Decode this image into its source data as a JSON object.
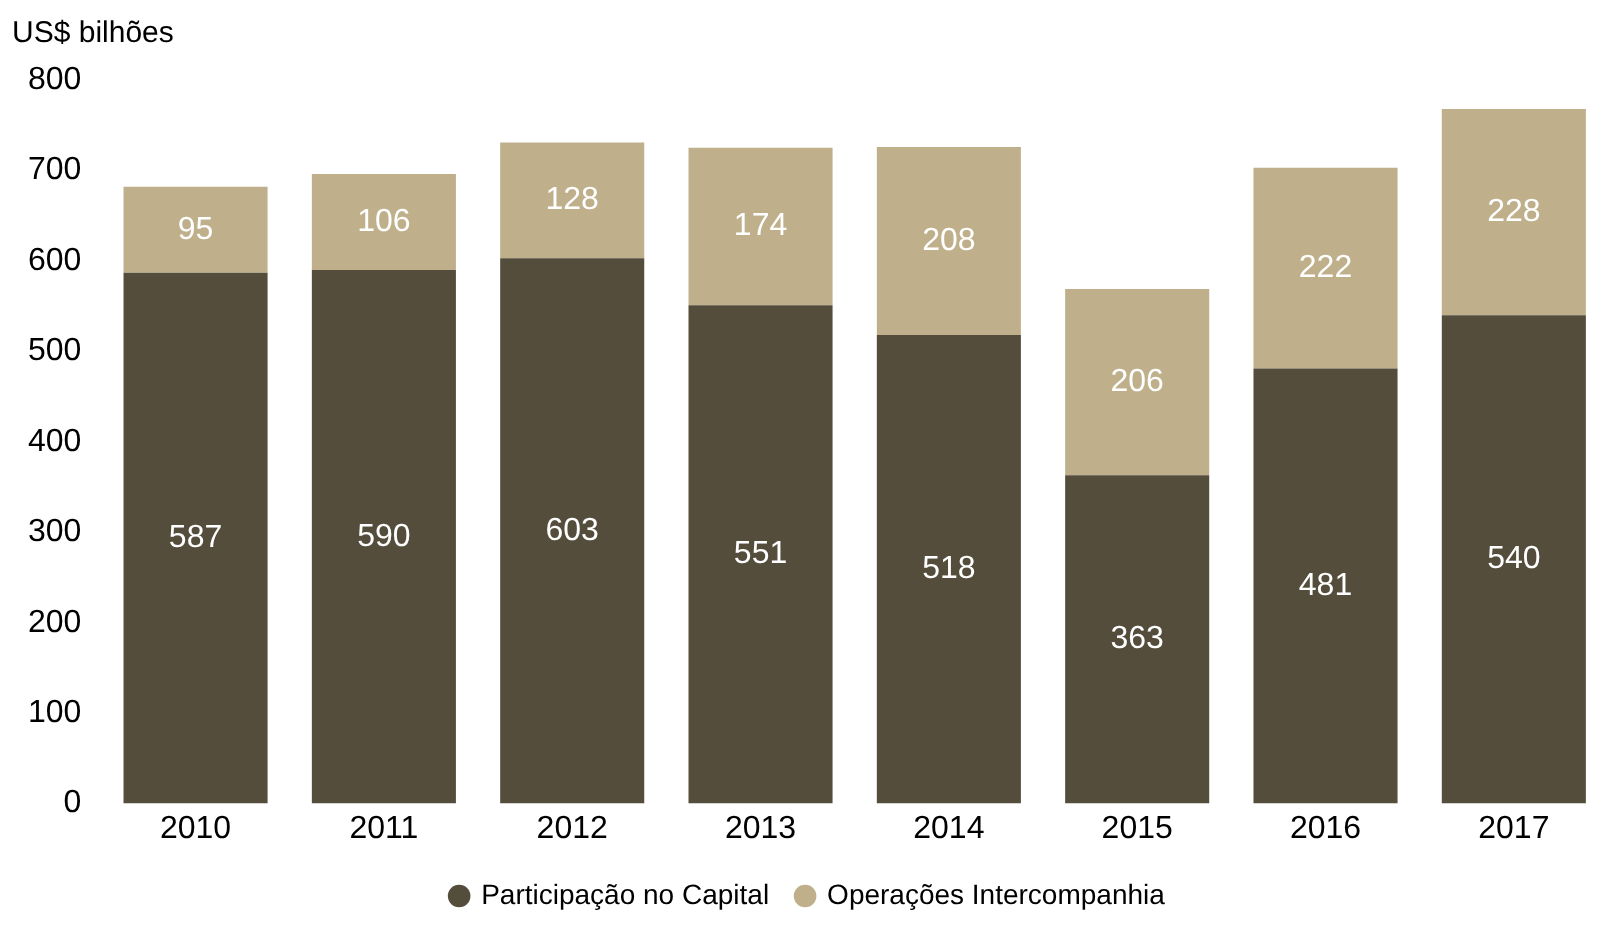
{
  "chart_data": {
    "type": "bar",
    "stacked": true,
    "ylabel": "US$ bilhões",
    "categories": [
      "2010",
      "2011",
      "2012",
      "2013",
      "2014",
      "2015",
      "2016",
      "2017"
    ],
    "series": [
      {
        "name": "Participação no Capital",
        "color": "#544d3c",
        "values": [
          587,
          590,
          603,
          551,
          518,
          363,
          481,
          540
        ]
      },
      {
        "name": "Operações Intercompanhia",
        "color": "#bfb08b",
        "values": [
          95,
          106,
          128,
          174,
          208,
          206,
          222,
          228
        ]
      }
    ],
    "ylim": [
      0,
      800
    ],
    "yticks": [
      0,
      100,
      200,
      300,
      400,
      500,
      600,
      700,
      800
    ],
    "grid": false,
    "legend": "bottom",
    "data_labels": true
  }
}
